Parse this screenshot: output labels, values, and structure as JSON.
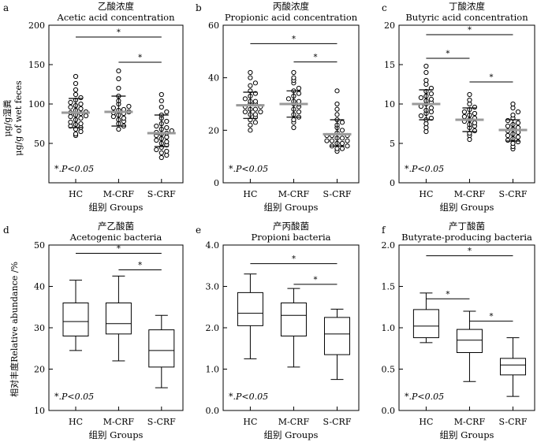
{
  "figure": {
    "shared_xlabel": "组别 Groups",
    "significance_note_star": "*",
    "significance_note_text": ".P<0.05",
    "significance_star": "*",
    "ylabel_top_cn": "μg/g湿粪",
    "ylabel_top_en": "μg/g of wet feces",
    "ylabel_bottom": "相对丰度Relative abundance /%",
    "colors": {
      "axis": "#000000",
      "point": "#000000",
      "median_bar": "#9a9a9a",
      "box": "#000000"
    }
  },
  "chart_data": [
    {
      "panel": "a",
      "type": "scatter",
      "title_cn": "乙酸浓度",
      "title_en": "Acetic acid concentration",
      "categories": [
        "HC",
        "M-CRF",
        "S-CRF"
      ],
      "yticks": [
        "50",
        "100",
        "150",
        "200"
      ],
      "ylim": [
        0,
        200
      ],
      "points": [
        [
          60,
          62,
          65,
          68,
          70,
          72,
          74,
          75,
          77,
          80,
          82,
          84,
          85,
          86,
          88,
          89,
          90,
          92,
          94,
          96,
          98,
          100,
          102,
          105,
          108,
          112,
          118,
          126,
          135
        ],
        [
          68,
          72,
          75,
          78,
          80,
          82,
          84,
          86,
          88,
          89,
          90,
          92,
          93,
          95,
          97,
          100,
          104,
          110,
          120,
          132,
          142
        ],
        [
          32,
          35,
          38,
          40,
          42,
          45,
          48,
          50,
          52,
          54,
          56,
          58,
          60,
          62,
          63,
          64,
          66,
          68,
          70,
          72,
          75,
          78,
          82,
          86,
          90,
          96,
          104,
          112
        ]
      ],
      "median": [
        89,
        90,
        63
      ],
      "whisker_low": [
        70,
        72,
        46
      ],
      "whisker_high": [
        107,
        110,
        86
      ],
      "significance": [
        {
          "from": 0,
          "to": 2,
          "y": 185,
          "label": "*"
        },
        {
          "from": 1,
          "to": 2,
          "y": 153,
          "label": "*"
        }
      ]
    },
    {
      "panel": "b",
      "type": "scatter",
      "title_cn": "丙酸浓度",
      "title_en": "Propionic acid concentration",
      "categories": [
        "HC",
        "M-CRF",
        "S-CRF"
      ],
      "yticks": [
        "0",
        "20",
        "40",
        "60"
      ],
      "ylim": [
        0,
        60
      ],
      "points": [
        [
          20,
          22,
          23,
          24,
          25,
          26,
          26,
          27,
          27,
          28,
          28,
          29,
          29,
          30,
          30,
          31,
          31,
          32,
          33,
          34,
          35,
          37,
          38,
          40,
          42
        ],
        [
          21,
          23,
          24,
          25,
          26,
          27,
          28,
          29,
          30,
          30,
          31,
          31,
          32,
          33,
          34,
          35,
          36,
          38,
          39,
          40,
          42
        ],
        [
          12,
          13,
          13,
          14,
          14,
          15,
          15,
          16,
          16,
          16,
          17,
          17,
          18,
          18,
          18,
          19,
          20,
          21,
          22,
          23,
          24,
          26,
          28,
          30,
          35
        ]
      ],
      "median": [
        29.5,
        30,
        18.5
      ],
      "whisker_low": [
        24.5,
        25,
        14
      ],
      "whisker_high": [
        34.5,
        35,
        24
      ],
      "significance": [
        {
          "from": 0,
          "to": 2,
          "y": 53,
          "label": "*"
        },
        {
          "from": 1,
          "to": 2,
          "y": 46,
          "label": "*"
        }
      ]
    },
    {
      "panel": "c",
      "type": "scatter",
      "title_cn": "丁酸浓度",
      "title_en": "Butyric acid concentration",
      "categories": [
        "HC",
        "M-CRF",
        "S-CRF"
      ],
      "yticks": [
        "0",
        "5",
        "10",
        "15",
        "20"
      ],
      "ylim": [
        0,
        20
      ],
      "points": [
        [
          6.5,
          7,
          7.5,
          8,
          8.2,
          8.5,
          8.8,
          9,
          9.2,
          9.5,
          9.7,
          10,
          10.2,
          10.4,
          10.6,
          10.8,
          11,
          11.3,
          11.6,
          12,
          12.5,
          13,
          14,
          14.8
        ],
        [
          5.5,
          6,
          6.3,
          6.6,
          7,
          7.2,
          7.4,
          7.6,
          7.8,
          8,
          8.2,
          8.4,
          8.6,
          8.8,
          9,
          9.3,
          9.6,
          10,
          10.5,
          11.2
        ],
        [
          4.3,
          4.6,
          5,
          5.2,
          5.4,
          5.6,
          5.8,
          6,
          6.2,
          6.4,
          6.6,
          6.8,
          7,
          7.2,
          7.4,
          7.6,
          7.9,
          8.2,
          8.6,
          9,
          9.5,
          10
        ]
      ],
      "median": [
        10,
        8,
        6.7
      ],
      "whisker_low": [
        8,
        6.5,
        5.3
      ],
      "whisker_high": [
        11.8,
        9.5,
        8
      ],
      "significance": [
        {
          "from": 0,
          "to": 2,
          "y": 18.8,
          "label": "*"
        },
        {
          "from": 0,
          "to": 1,
          "y": 15.8,
          "label": "*"
        },
        {
          "from": 1,
          "to": 2,
          "y": 12.8,
          "label": "*"
        }
      ]
    },
    {
      "panel": "d",
      "type": "box",
      "title_cn": "产乙酸菌",
      "title_en": "Acetogenic bacteria",
      "categories": [
        "HC",
        "M-CRF",
        "S-CRF"
      ],
      "yticks": [
        "10",
        "20",
        "30",
        "40",
        "50"
      ],
      "ylim": [
        10,
        50
      ],
      "boxes": [
        {
          "min": 24.5,
          "q1": 28,
          "median": 31.5,
          "q3": 36,
          "max": 41.5
        },
        {
          "min": 22,
          "q1": 28.5,
          "median": 31,
          "q3": 36,
          "max": 42.5
        },
        {
          "min": 15.5,
          "q1": 20.5,
          "median": 24.5,
          "q3": 29.5,
          "max": 33
        }
      ],
      "significance": [
        {
          "from": 0,
          "to": 2,
          "y": 48,
          "label": "*"
        },
        {
          "from": 1,
          "to": 2,
          "y": 44,
          "label": "*"
        }
      ]
    },
    {
      "panel": "e",
      "type": "box",
      "title_cn": "产丙酸菌",
      "title_en": "Propioni bacteria",
      "categories": [
        "HC",
        "M-CRF",
        "S-CRF"
      ],
      "yticks": [
        "0.0",
        "1.0",
        "2.0",
        "3.0",
        "4.0"
      ],
      "ylim": [
        0,
        4
      ],
      "boxes": [
        {
          "min": 1.25,
          "q1": 2.05,
          "median": 2.35,
          "q3": 2.85,
          "max": 3.3
        },
        {
          "min": 1.05,
          "q1": 1.8,
          "median": 2.3,
          "q3": 2.6,
          "max": 2.95
        },
        {
          "min": 0.75,
          "q1": 1.35,
          "median": 1.85,
          "q3": 2.25,
          "max": 2.45
        }
      ],
      "significance": [
        {
          "from": 0,
          "to": 2,
          "y": 3.55,
          "label": "*"
        },
        {
          "from": 1,
          "to": 2,
          "y": 3.05,
          "label": "*"
        }
      ]
    },
    {
      "panel": "f",
      "type": "box",
      "title_cn": "产丁酸菌",
      "title_en": "Butyrate-producing bacteria",
      "categories": [
        "HC",
        "M-CRF",
        "S-CRF"
      ],
      "yticks": [
        "0.0",
        "0.5",
        "1.0",
        "1.5",
        "2.0"
      ],
      "ylim": [
        0,
        2
      ],
      "boxes": [
        {
          "min": 0.82,
          "q1": 0.88,
          "median": 1.02,
          "q3": 1.22,
          "max": 1.42
        },
        {
          "min": 0.35,
          "q1": 0.7,
          "median": 0.85,
          "q3": 0.98,
          "max": 1.2
        },
        {
          "min": 0.17,
          "q1": 0.43,
          "median": 0.55,
          "q3": 0.63,
          "max": 0.88
        }
      ],
      "significance": [
        {
          "from": 0,
          "to": 2,
          "y": 1.87,
          "label": "*"
        },
        {
          "from": 0,
          "to": 1,
          "y": 1.35,
          "label": "*"
        },
        {
          "from": 1,
          "to": 2,
          "y": 1.08,
          "label": "*"
        }
      ]
    }
  ]
}
